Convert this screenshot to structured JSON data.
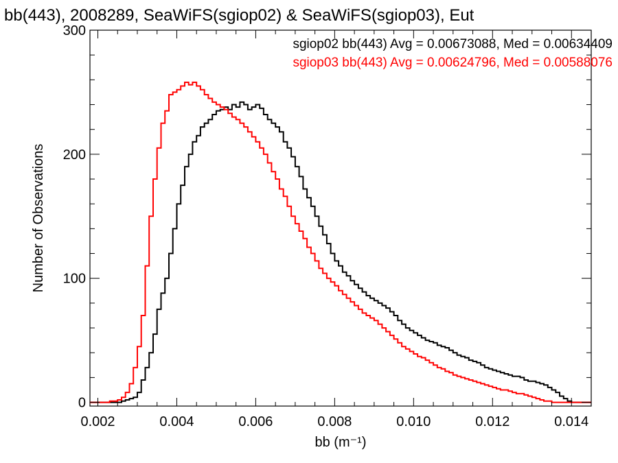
{
  "chart_data": {
    "type": "line",
    "title": "bb(443), 2008289, SeaWiFS(sgiop02) & SeaWiFS(sgiop03), Eut",
    "xlabel": "bb (m⁻¹)",
    "ylabel": "Number of Observations",
    "xlim": [
      0.0018,
      0.0145
    ],
    "ylim": [
      -3,
      300
    ],
    "xticks": [
      0.002,
      0.004,
      0.006,
      0.008,
      0.01,
      0.012,
      0.014
    ],
    "xtick_labels": [
      "0.002",
      "0.004",
      "0.006",
      "0.008",
      "0.010",
      "0.012",
      "0.014"
    ],
    "yticks": [
      0,
      100,
      200,
      300
    ],
    "ytick_labels": [
      "0",
      "100",
      "200",
      "300"
    ],
    "grid": false,
    "step": true,
    "annotations": [
      {
        "text": "sgiop02 bb(443) Avg = 0.00673088, Med = 0.00634409",
        "color": "#000000"
      },
      {
        "text": "sgiop03 bb(443) Avg = 0.00624796, Med = 0.00588076",
        "color": "#ff0000"
      }
    ],
    "series": [
      {
        "color": "#000000",
        "x": [
          0.0018,
          0.0025,
          0.0026,
          0.0027,
          0.0028,
          0.0029,
          0.003,
          0.0031,
          0.0032,
          0.0033,
          0.0034,
          0.0035,
          0.0036,
          0.0037,
          0.0038,
          0.0039,
          0.004,
          0.0041,
          0.0042,
          0.0043,
          0.0044,
          0.0045,
          0.0046,
          0.0047,
          0.0048,
          0.0049,
          0.005,
          0.0051,
          0.0052,
          0.0053,
          0.0054,
          0.0055,
          0.0056,
          0.0057,
          0.0058,
          0.0059,
          0.006,
          0.0061,
          0.0062,
          0.0063,
          0.0064,
          0.0065,
          0.0066,
          0.0067,
          0.0068,
          0.0069,
          0.007,
          0.0071,
          0.0072,
          0.0073,
          0.0074,
          0.0075,
          0.0076,
          0.0077,
          0.0078,
          0.0079,
          0.008,
          0.0081,
          0.0082,
          0.0083,
          0.0084,
          0.0085,
          0.0086,
          0.0087,
          0.0088,
          0.0089,
          0.009,
          0.0091,
          0.0092,
          0.0093,
          0.0094,
          0.0095,
          0.0096,
          0.0097,
          0.0098,
          0.0099,
          0.01,
          0.0101,
          0.0102,
          0.0103,
          0.0104,
          0.0105,
          0.0106,
          0.0107,
          0.0108,
          0.0109,
          0.011,
          0.0111,
          0.0112,
          0.0113,
          0.0114,
          0.0115,
          0.0116,
          0.0117,
          0.0118,
          0.0119,
          0.012,
          0.0121,
          0.0122,
          0.0123,
          0.0124,
          0.0125,
          0.0126,
          0.0127,
          0.0128,
          0.0129,
          0.013,
          0.0131,
          0.0132,
          0.0133,
          0.0134,
          0.0135,
          0.0136,
          0.0137,
          0.0138,
          0.0139,
          0.014,
          0.0145
        ],
        "y": [
          0,
          0,
          1,
          2,
          3,
          4,
          8,
          18,
          28,
          40,
          55,
          75,
          88,
          100,
          120,
          140,
          160,
          175,
          190,
          200,
          210,
          215,
          222,
          225,
          228,
          232,
          235,
          236,
          238,
          236,
          240,
          238,
          242,
          240,
          236,
          238,
          240,
          237,
          232,
          228,
          225,
          222,
          218,
          210,
          205,
          198,
          190,
          182,
          172,
          165,
          158,
          150,
          142,
          135,
          128,
          120,
          114,
          110,
          105,
          102,
          98,
          95,
          92,
          89,
          86,
          84,
          82,
          80,
          78,
          76,
          73,
          70,
          66,
          63,
          60,
          58,
          56,
          54,
          52,
          50,
          49,
          48,
          46,
          45,
          44,
          42,
          40,
          38,
          37,
          36,
          34,
          33,
          32,
          30,
          28,
          27,
          26,
          25,
          24,
          23,
          22,
          21,
          21,
          20,
          18,
          17,
          17,
          16,
          15,
          14,
          12,
          10,
          8,
          5,
          3,
          1,
          0,
          0
        ]
      },
      {
        "color": "#ff0000",
        "x": [
          0.0018,
          0.0022,
          0.0023,
          0.0024,
          0.0025,
          0.0026,
          0.0027,
          0.0028,
          0.0029,
          0.003,
          0.0031,
          0.0032,
          0.0033,
          0.0034,
          0.0035,
          0.0036,
          0.0037,
          0.0038,
          0.0039,
          0.004,
          0.0041,
          0.0042,
          0.0043,
          0.0044,
          0.0045,
          0.0046,
          0.0047,
          0.0048,
          0.0049,
          0.005,
          0.0051,
          0.0052,
          0.0053,
          0.0054,
          0.0055,
          0.0056,
          0.0057,
          0.0058,
          0.0059,
          0.006,
          0.0061,
          0.0062,
          0.0063,
          0.0064,
          0.0065,
          0.0066,
          0.0067,
          0.0068,
          0.0069,
          0.007,
          0.0071,
          0.0072,
          0.0073,
          0.0074,
          0.0075,
          0.0076,
          0.0077,
          0.0078,
          0.0079,
          0.008,
          0.0081,
          0.0082,
          0.0083,
          0.0084,
          0.0085,
          0.0086,
          0.0087,
          0.0088,
          0.0089,
          0.009,
          0.0091,
          0.0092,
          0.0093,
          0.0094,
          0.0095,
          0.0096,
          0.0097,
          0.0098,
          0.0099,
          0.01,
          0.0101,
          0.0102,
          0.0103,
          0.0104,
          0.0105,
          0.0106,
          0.0107,
          0.0108,
          0.0109,
          0.011,
          0.0111,
          0.0112,
          0.0113,
          0.0114,
          0.0115,
          0.0116,
          0.0117,
          0.0118,
          0.0119,
          0.012,
          0.0121,
          0.0122,
          0.0123,
          0.0124,
          0.0125,
          0.0126,
          0.0127,
          0.0128,
          0.0129,
          0.013,
          0.0131,
          0.0132,
          0.0133,
          0.0134,
          0.0135,
          0.0136,
          0.0137,
          0.0138,
          0.0145
        ],
        "y": [
          0,
          0,
          1,
          1,
          2,
          4,
          8,
          15,
          28,
          45,
          70,
          110,
          150,
          180,
          205,
          225,
          235,
          248,
          250,
          252,
          255,
          258,
          256,
          258,
          255,
          252,
          248,
          245,
          242,
          240,
          238,
          236,
          233,
          230,
          228,
          225,
          222,
          218,
          214,
          210,
          205,
          200,
          193,
          186,
          180,
          172,
          166,
          158,
          150,
          144,
          138,
          132,
          125,
          120,
          114,
          108,
          104,
          100,
          97,
          94,
          90,
          87,
          84,
          81,
          78,
          75,
          72,
          70,
          68,
          66,
          63,
          60,
          57,
          54,
          51,
          48,
          45,
          43,
          41,
          39,
          37,
          36,
          34,
          32,
          30,
          28,
          27,
          25,
          24,
          22,
          21,
          20,
          19,
          18,
          17,
          16,
          15,
          14,
          13,
          12,
          11,
          10,
          10,
          9,
          8,
          7,
          7,
          6,
          5,
          4,
          3,
          2,
          1,
          1,
          0,
          0,
          0,
          0,
          0
        ]
      }
    ]
  }
}
